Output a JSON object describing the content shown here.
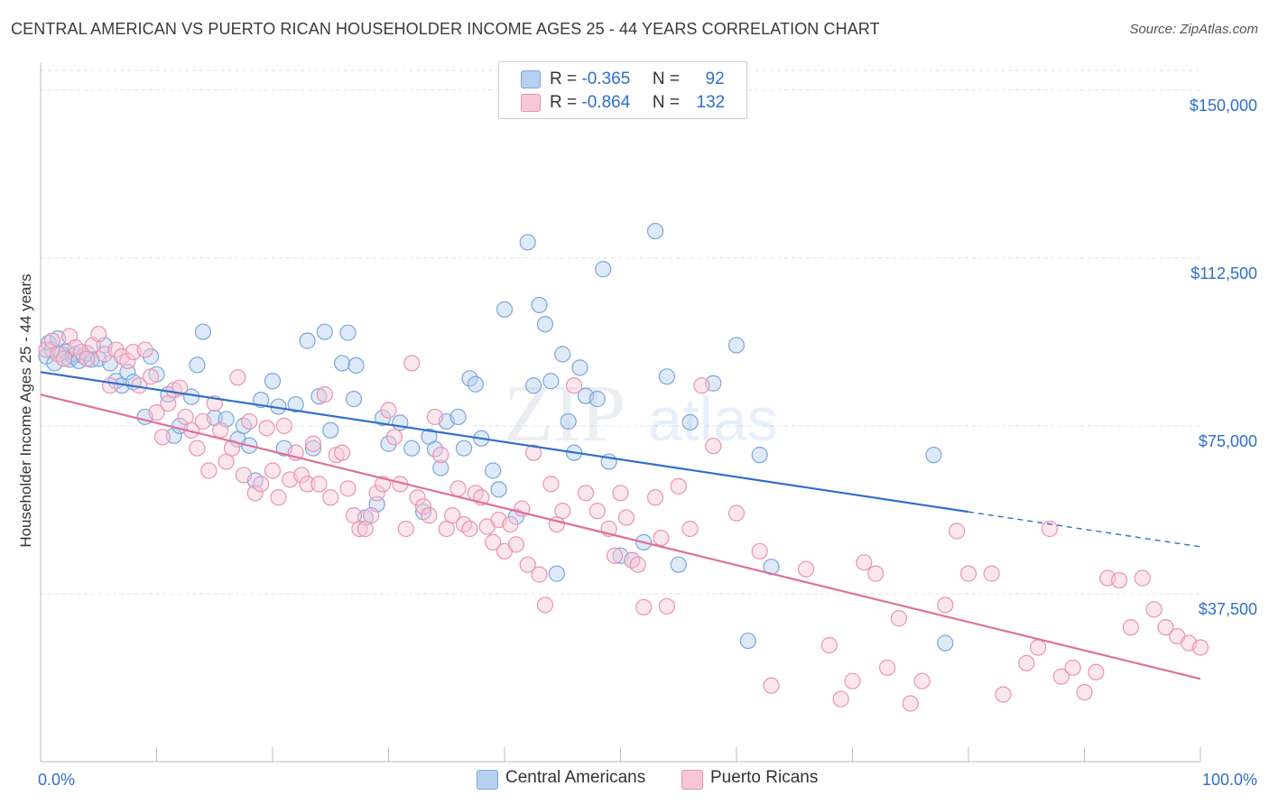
{
  "header": {
    "title": "CENTRAL AMERICAN VS PUERTO RICAN HOUSEHOLDER INCOME AGES 25 - 44 YEARS CORRELATION CHART",
    "source": "Source: ZipAtlas.com"
  },
  "legend": {
    "rows": [
      {
        "r_label": "R =",
        "r_value": "-0.365",
        "n_label": "N =",
        "n_value": "92"
      },
      {
        "r_label": "R =",
        "r_value": "-0.864",
        "n_label": "N =",
        "n_value": "132"
      }
    ]
  },
  "watermark": {
    "zip": "ZIP",
    "atlas": "atlas"
  },
  "colors": {
    "blue_fill": "#b7d0f0",
    "blue_stroke": "#7aa6de",
    "blue_line": "#2e6fcb",
    "pink_fill": "#f8c7d6",
    "pink_stroke": "#ea93b0",
    "pink_line": "#e0709a",
    "axis_label": "#2e6fcb"
  },
  "chart_data": {
    "type": "scatter",
    "title": "CENTRAL AMERICAN VS PUERTO RICAN HOUSEHOLDER INCOME AGES 25 - 44 YEARS CORRELATION CHART",
    "xlabel": "",
    "ylabel": "Householder Income Ages 25 - 44 years",
    "xlim": [
      0,
      100
    ],
    "ylim": [
      0,
      156000
    ],
    "x_tick_labels": [
      "0.0%",
      "100.0%"
    ],
    "y_ticks": [
      37500,
      75000,
      112500,
      150000
    ],
    "y_tick_labels": [
      "$37,500",
      "$75,000",
      "$112,500",
      "$150,000"
    ],
    "grid": true,
    "legend_position": "top-center",
    "series": [
      {
        "name": "Central Americans",
        "r": -0.365,
        "n": 92,
        "trend": {
          "x0": 0,
          "y0": 87000,
          "x1": 80,
          "y1": 55800,
          "dash_x1": 100,
          "dash_y1": 48000
        },
        "points": [
          [
            0.5,
            90500
          ],
          [
            0.7,
            93500
          ],
          [
            1,
            92000
          ],
          [
            1.2,
            89000
          ],
          [
            1.5,
            94500
          ],
          [
            1.8,
            91000
          ],
          [
            2,
            90000
          ],
          [
            2.2,
            91500
          ],
          [
            2.5,
            89800
          ],
          [
            2.8,
            90500
          ],
          [
            3,
            91000
          ],
          [
            3.3,
            89500
          ],
          [
            3.7,
            90600
          ],
          [
            4,
            91200
          ],
          [
            4.4,
            89800
          ],
          [
            5,
            90000
          ],
          [
            5.5,
            93000
          ],
          [
            6,
            89000
          ],
          [
            6.5,
            85000
          ],
          [
            7,
            84000
          ],
          [
            7.5,
            87000
          ],
          [
            8,
            84800
          ],
          [
            9,
            77000
          ],
          [
            9.5,
            90500
          ],
          [
            10,
            86500
          ],
          [
            11,
            82000
          ],
          [
            11.5,
            72800
          ],
          [
            12,
            75000
          ],
          [
            13,
            81500
          ],
          [
            13.5,
            88600
          ],
          [
            14,
            96000
          ],
          [
            15,
            76800
          ],
          [
            16,
            76500
          ],
          [
            17,
            72000
          ],
          [
            17.5,
            75000
          ],
          [
            18,
            70600
          ],
          [
            18.5,
            62800
          ],
          [
            19,
            80800
          ],
          [
            20,
            85000
          ],
          [
            20.5,
            79300
          ],
          [
            21,
            70000
          ],
          [
            22,
            79800
          ],
          [
            23,
            94000
          ],
          [
            23.5,
            70000
          ],
          [
            24,
            81600
          ],
          [
            24.5,
            96000
          ],
          [
            25,
            74000
          ],
          [
            26,
            89000
          ],
          [
            26.5,
            95800
          ],
          [
            27,
            81000
          ],
          [
            27.2,
            88500
          ],
          [
            28,
            54500
          ],
          [
            29,
            57500
          ],
          [
            29.5,
            76800
          ],
          [
            30,
            71000
          ],
          [
            31,
            75700
          ],
          [
            32,
            70000
          ],
          [
            33,
            55800
          ],
          [
            33.5,
            72600
          ],
          [
            34,
            69800
          ],
          [
            34.5,
            65600
          ],
          [
            35,
            76000
          ],
          [
            36,
            77000
          ],
          [
            36.5,
            70000
          ],
          [
            37,
            85600
          ],
          [
            37.5,
            84300
          ],
          [
            38,
            72200
          ],
          [
            39,
            65000
          ],
          [
            39.5,
            60800
          ],
          [
            40,
            101000
          ],
          [
            41,
            54700
          ],
          [
            42,
            116000
          ],
          [
            42.5,
            84000
          ],
          [
            43,
            102000
          ],
          [
            43.5,
            97700
          ],
          [
            44,
            85000
          ],
          [
            44.5,
            42000
          ],
          [
            45,
            91000
          ],
          [
            45.5,
            76000
          ],
          [
            46,
            69000
          ],
          [
            46.5,
            88000
          ],
          [
            47,
            81700
          ],
          [
            48,
            81000
          ],
          [
            48.5,
            110000
          ],
          [
            49,
            67000
          ],
          [
            50,
            46000
          ],
          [
            51,
            45000
          ],
          [
            52,
            49000
          ],
          [
            53,
            118500
          ],
          [
            54,
            86000
          ],
          [
            55,
            44000
          ],
          [
            56,
            75800
          ],
          [
            58,
            84500
          ],
          [
            60,
            93000
          ],
          [
            61,
            27000
          ],
          [
            62,
            68500
          ],
          [
            63,
            43500
          ],
          [
            77,
            68500
          ],
          [
            78,
            26500
          ]
        ]
      },
      {
        "name": "Puerto Ricans",
        "r": -0.864,
        "n": 132,
        "trend": {
          "x0": 0,
          "y0": 82000,
          "x1": 100,
          "y1": 18500
        },
        "points": [
          [
            0.5,
            92000
          ],
          [
            1,
            94000
          ],
          [
            1.5,
            91000
          ],
          [
            2,
            90000
          ],
          [
            2.5,
            95000
          ],
          [
            3,
            92500
          ],
          [
            3.5,
            91500
          ],
          [
            4,
            90000
          ],
          [
            4.5,
            93000
          ],
          [
            5,
            95500
          ],
          [
            5.5,
            91000
          ],
          [
            6,
            84000
          ],
          [
            6.5,
            92000
          ],
          [
            7,
            90500
          ],
          [
            7.5,
            89500
          ],
          [
            8,
            91500
          ],
          [
            8.5,
            84000
          ],
          [
            9,
            92000
          ],
          [
            9.5,
            86000
          ],
          [
            10,
            78000
          ],
          [
            10.5,
            72500
          ],
          [
            11,
            80000
          ],
          [
            11.5,
            83000
          ],
          [
            12,
            83500
          ],
          [
            12.5,
            77000
          ],
          [
            13,
            74000
          ],
          [
            13.5,
            70000
          ],
          [
            14,
            76000
          ],
          [
            14.5,
            65000
          ],
          [
            15,
            80000
          ],
          [
            15.5,
            74000
          ],
          [
            16,
            67000
          ],
          [
            16.5,
            70000
          ],
          [
            17,
            85800
          ],
          [
            17.5,
            64000
          ],
          [
            18,
            76000
          ],
          [
            18.5,
            60000
          ],
          [
            19,
            62000
          ],
          [
            19.5,
            74500
          ],
          [
            20,
            65000
          ],
          [
            20.5,
            59000
          ],
          [
            21,
            75000
          ],
          [
            21.5,
            63000
          ],
          [
            22,
            69000
          ],
          [
            22.5,
            64000
          ],
          [
            23,
            62000
          ],
          [
            23.5,
            71000
          ],
          [
            24,
            62000
          ],
          [
            24.5,
            82000
          ],
          [
            25,
            59000
          ],
          [
            25.5,
            68500
          ],
          [
            26,
            69000
          ],
          [
            26.5,
            61000
          ],
          [
            27,
            55000
          ],
          [
            27.5,
            52000
          ],
          [
            28,
            52000
          ],
          [
            28.5,
            55000
          ],
          [
            29,
            60000
          ],
          [
            29.5,
            62000
          ],
          [
            30,
            78500
          ],
          [
            30.5,
            72500
          ],
          [
            31,
            62000
          ],
          [
            31.5,
            52000
          ],
          [
            32,
            89000
          ],
          [
            32.5,
            59000
          ],
          [
            33,
            57000
          ],
          [
            33.5,
            55000
          ],
          [
            34,
            77000
          ],
          [
            34.5,
            68500
          ],
          [
            35,
            52000
          ],
          [
            35.5,
            55000
          ],
          [
            36,
            61000
          ],
          [
            36.5,
            53000
          ],
          [
            37,
            52000
          ],
          [
            37.5,
            60000
          ],
          [
            38,
            59000
          ],
          [
            38.5,
            52500
          ],
          [
            39,
            49000
          ],
          [
            39.5,
            54000
          ],
          [
            40,
            47000
          ],
          [
            40.5,
            53000
          ],
          [
            41,
            48500
          ],
          [
            41.5,
            56500
          ],
          [
            42,
            44000
          ],
          [
            42.5,
            69000
          ],
          [
            43,
            41800
          ],
          [
            43.5,
            35000
          ],
          [
            44,
            62000
          ],
          [
            44.5,
            53000
          ],
          [
            45,
            56000
          ],
          [
            46,
            84000
          ],
          [
            47,
            60000
          ],
          [
            48,
            56000
          ],
          [
            49,
            52000
          ],
          [
            49.5,
            46000
          ],
          [
            50,
            60000
          ],
          [
            50.5,
            54500
          ],
          [
            51,
            45000
          ],
          [
            51.5,
            44000
          ],
          [
            52,
            34500
          ],
          [
            53,
            59000
          ],
          [
            53.5,
            50000
          ],
          [
            54,
            34700
          ],
          [
            55,
            61500
          ],
          [
            56,
            52000
          ],
          [
            57,
            84000
          ],
          [
            58,
            70500
          ],
          [
            60,
            55500
          ],
          [
            62,
            47000
          ],
          [
            63,
            17000
          ],
          [
            66,
            43000
          ],
          [
            68,
            26000
          ],
          [
            69,
            14000
          ],
          [
            70,
            18000
          ],
          [
            71,
            44500
          ],
          [
            72,
            42000
          ],
          [
            73,
            21000
          ],
          [
            74,
            32000
          ],
          [
            75,
            13000
          ],
          [
            76,
            18000
          ],
          [
            78,
            35000
          ],
          [
            79,
            51500
          ],
          [
            80,
            42000
          ],
          [
            82,
            42000
          ],
          [
            83,
            15000
          ],
          [
            85,
            22000
          ],
          [
            86,
            25500
          ],
          [
            87,
            52000
          ],
          [
            88,
            19000
          ],
          [
            89,
            21000
          ],
          [
            90,
            15500
          ],
          [
            91,
            20000
          ],
          [
            92,
            41000
          ],
          [
            93,
            40500
          ],
          [
            94,
            30000
          ],
          [
            95,
            41000
          ],
          [
            96,
            34000
          ],
          [
            97,
            30000
          ],
          [
            98,
            28000
          ],
          [
            99,
            26500
          ],
          [
            100,
            25500
          ]
        ]
      }
    ]
  },
  "bottom_legend": [
    {
      "label": "Central Americans"
    },
    {
      "label": "Puerto Ricans"
    }
  ]
}
